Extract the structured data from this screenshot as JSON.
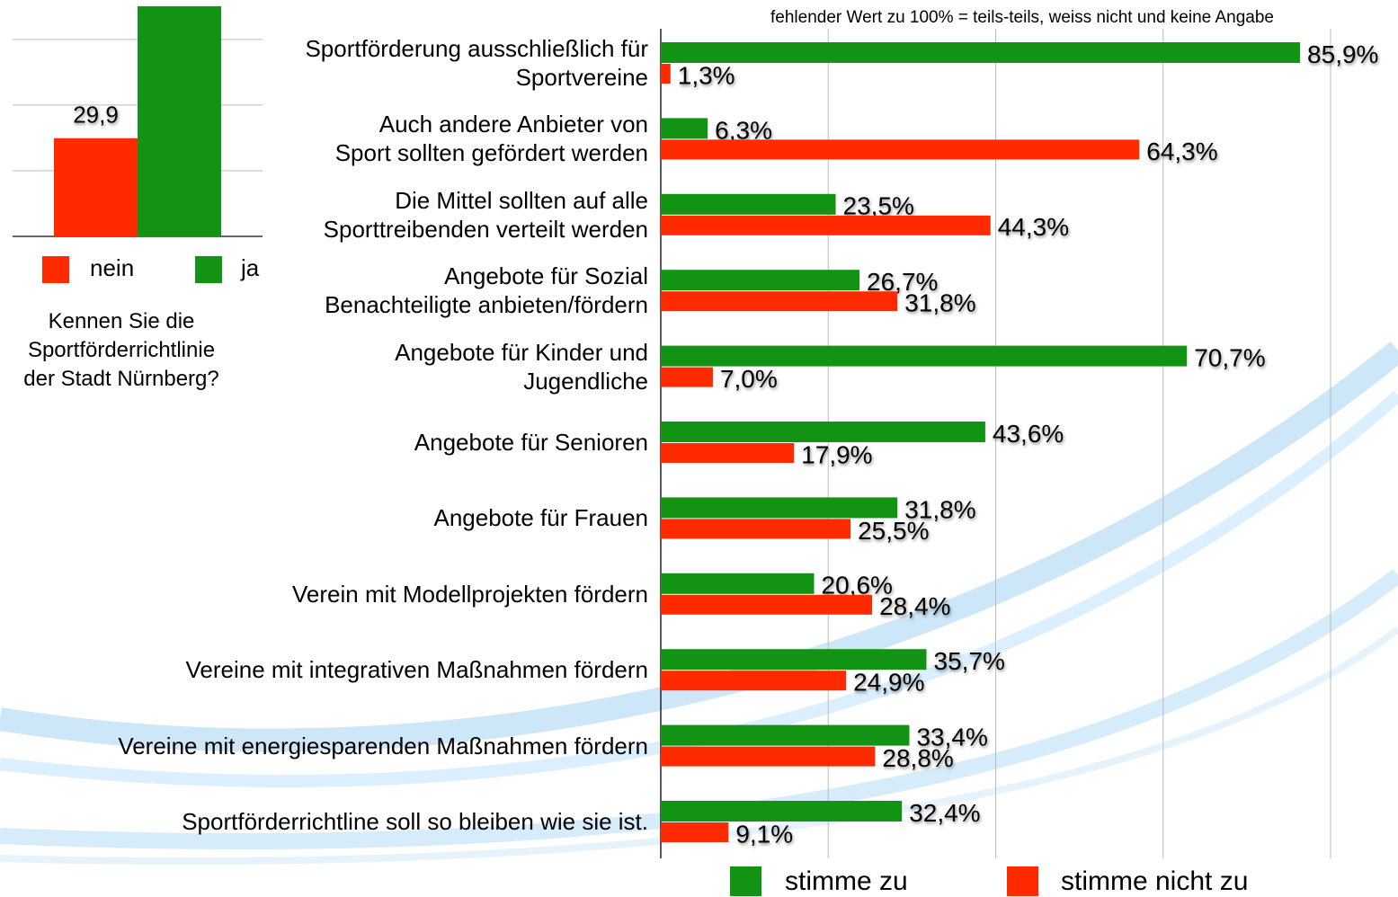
{
  "chart_data": [
    {
      "type": "bar",
      "title": "Kennen Sie die\nSportförderrichtlinie\nder Stadt Nürnberg?",
      "categories": [
        "nein",
        "ja"
      ],
      "values": [
        29.9,
        70.1
      ],
      "value_labels": [
        "29,9",
        null
      ],
      "colors": [
        "#ff2a00",
        "#139313"
      ],
      "ylim": [
        0,
        72
      ],
      "yticks": [
        0,
        20,
        40,
        60
      ],
      "grid": true,
      "legend": "bottom"
    },
    {
      "type": "hbar",
      "subtitle": "fehlender Wert zu 100% = teils-teils, weiss nicht und keine Angabe",
      "categories": [
        "Sportförderung ausschließlich für\nSportvereine",
        "Auch andere Anbieter von\nSport sollten gefördert werden",
        "Die Mittel sollten auf alle\nSporttreibenden verteilt werden",
        "Angebote für Sozial\nBenachteiligte anbieten/fördern",
        "Angebote für Kinder und\nJugendliche",
        "Angebote für Senioren",
        "Angebote für Frauen",
        "Verein mit Modellprojekten fördern",
        "Vereine mit integrativen Maßnahmen fördern",
        "Vereine mit energiesparenden Maßnahmen fördern",
        "Sportförderrichtline soll so bleiben wie sie ist."
      ],
      "series": [
        {
          "name": "stimme zu",
          "color": "#139313",
          "values": [
            85.9,
            6.3,
            23.5,
            26.7,
            70.7,
            43.6,
            31.8,
            20.6,
            35.7,
            33.4,
            32.4
          ],
          "value_labels": [
            "85,9%",
            "6,3%",
            "23,5%",
            "26,7%",
            "70,7%",
            "43,6%",
            "31,8%",
            "20,6%",
            "35,7%",
            "33,4%",
            "32,4%"
          ]
        },
        {
          "name": "stimme nicht zu",
          "color": "#ff2a00",
          "values": [
            1.3,
            64.3,
            44.3,
            31.8,
            7.0,
            17.9,
            25.5,
            28.4,
            24.9,
            28.8,
            9.1
          ],
          "value_labels": [
            "1,3%",
            "64,3%",
            "44,3%",
            "31,8%",
            "7,0%",
            "17,9%",
            "25,5%",
            "28,4%",
            "24,9%",
            "28,8%",
            "9,1%"
          ]
        }
      ],
      "xlim": [
        0,
        90
      ],
      "xticks": [
        0,
        22.5,
        45,
        67.5,
        90
      ],
      "grid": true,
      "legend": "bottom"
    }
  ]
}
